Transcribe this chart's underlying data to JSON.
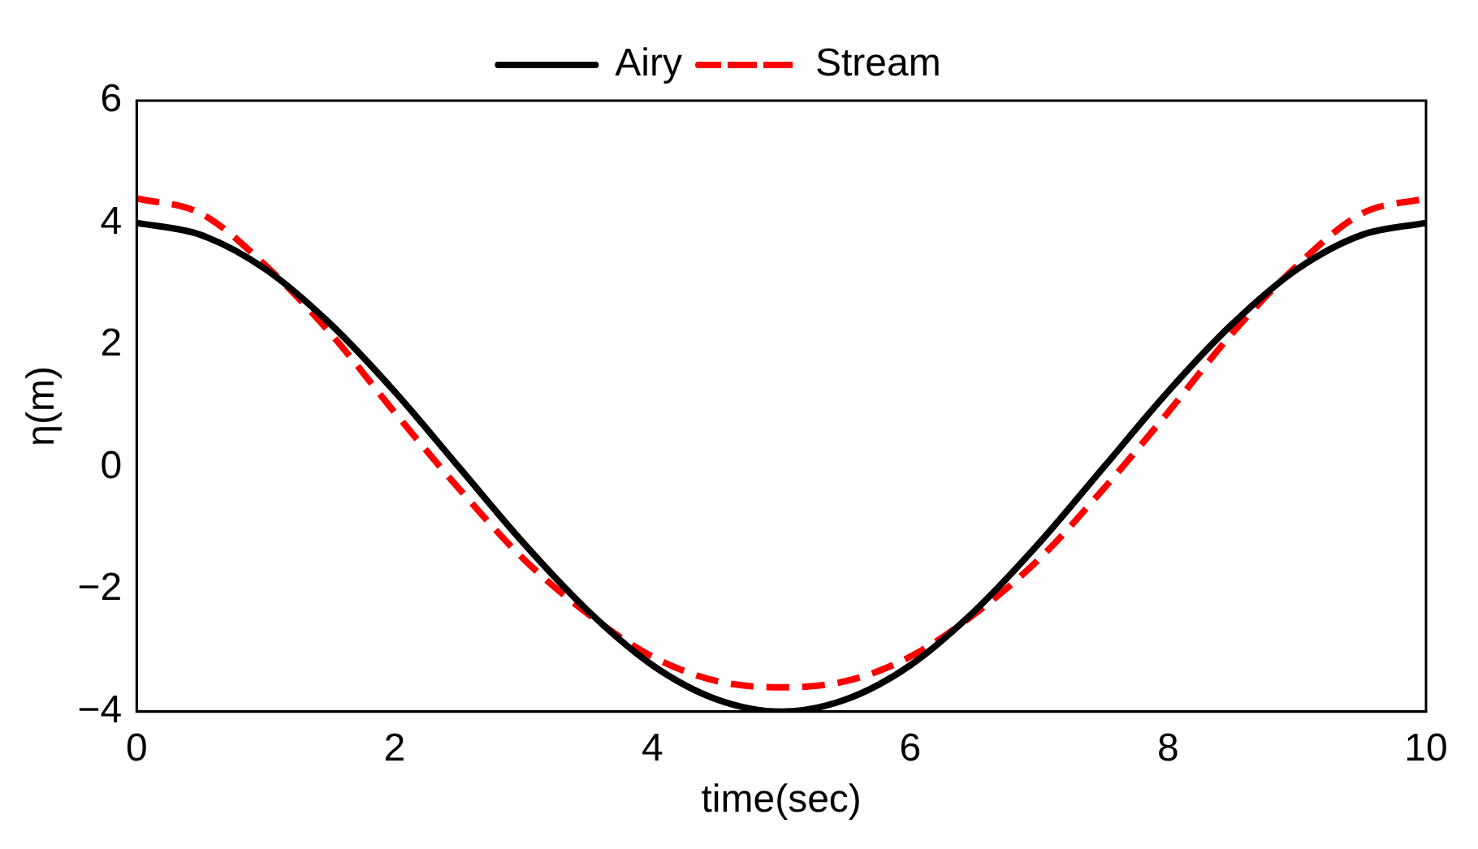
{
  "chart_data": {
    "type": "line",
    "xlabel": "time(sec)",
    "ylabel": "η(m)",
    "xlim": [
      0,
      10
    ],
    "ylim": [
      -4,
      6
    ],
    "xticks": [
      0,
      2,
      4,
      6,
      8,
      10
    ],
    "yticks": [
      -4,
      -2,
      0,
      2,
      4,
      6
    ],
    "legend": "top",
    "grid": false,
    "x": [
      0,
      0.5,
      1,
      1.5,
      2,
      2.5,
      3,
      3.5,
      4,
      4.5,
      5,
      5.5,
      6,
      6.5,
      7,
      7.5,
      8,
      8.5,
      9,
      9.5,
      10
    ],
    "series": [
      {
        "name": "Airy",
        "color": "#000000",
        "line_style": "solid",
        "values": [
          4,
          3.8,
          3.24,
          2.35,
          1.24,
          0,
          -1.24,
          -2.35,
          -3.24,
          -3.8,
          -4,
          -3.8,
          -3.24,
          -2.35,
          -1.24,
          0,
          1.24,
          2.35,
          3.24,
          3.8,
          4
        ]
      },
      {
        "name": "Stream",
        "color": "#ff0000",
        "line_style": "dashed",
        "values": [
          4.4,
          4.15,
          3.3,
          2.2,
          0.9,
          -0.35,
          -1.5,
          -2.4,
          -3.1,
          -3.5,
          -3.6,
          -3.5,
          -3.1,
          -2.4,
          -1.5,
          -0.35,
          0.9,
          2.2,
          3.3,
          4.15,
          4.4
        ]
      }
    ]
  }
}
